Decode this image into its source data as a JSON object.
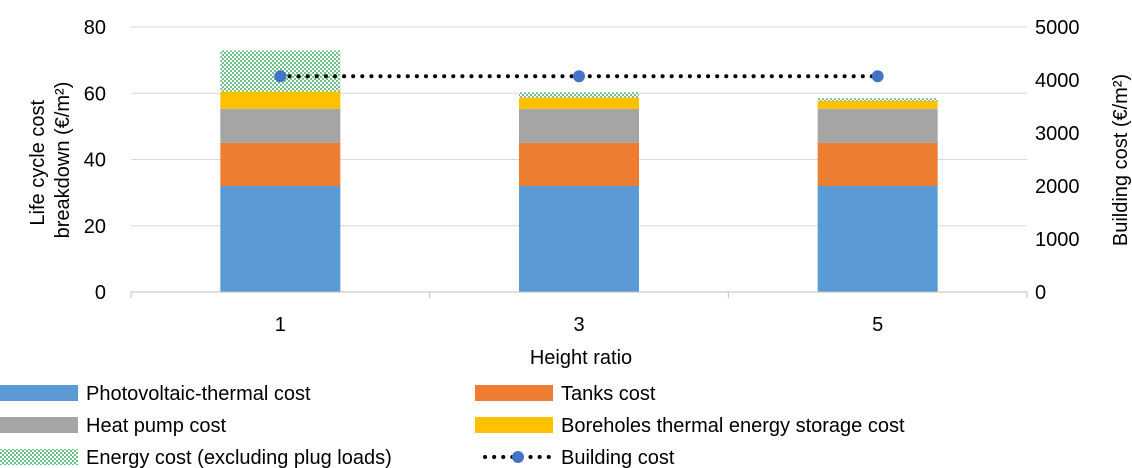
{
  "chart_data": {
    "type": "bar",
    "stacked": true,
    "xlabel": "Height ratio",
    "ylabel_lines": [
      "Life cycle cost",
      "breakdown (€/m²)"
    ],
    "y2label": "Building cost (€/m²)",
    "ylim": [
      0,
      80
    ],
    "y2lim": [
      0,
      5000
    ],
    "yticks": [
      0,
      20,
      40,
      60,
      80
    ],
    "y2ticks": [
      0,
      1000,
      2000,
      3000,
      4000,
      5000
    ],
    "categories": [
      "1",
      "3",
      "5"
    ],
    "grid": true,
    "legend_position": "bottom",
    "series": [
      {
        "name": "Photovoltaic-thermal cost",
        "values": [
          32,
          32,
          32
        ],
        "color": "#5B9BD5",
        "pattern": "solid"
      },
      {
        "name": "Tanks cost",
        "values": [
          13,
          13,
          13
        ],
        "color": "#ED7D31",
        "pattern": "solid"
      },
      {
        "name": "Heat pump cost",
        "values": [
          10.3,
          10.3,
          10.3
        ],
        "color": "#A5A5A5",
        "pattern": "solid"
      },
      {
        "name": "Boreholes thermal energy storage cost",
        "values": [
          5.2,
          3.4,
          2.4
        ],
        "color": "#FFC000",
        "pattern": "solid"
      },
      {
        "name": "Energy cost (excluding plug loads)",
        "values": [
          12.4,
          1.6,
          0.8
        ],
        "color": "#6BC18A",
        "pattern": "dots"
      }
    ],
    "line_series": {
      "name": "Building cost",
      "axis": "right",
      "values": [
        4070,
        4070,
        4070
      ],
      "color": "#4472C4",
      "line_style": "dotted",
      "line_color": "#000000"
    }
  }
}
